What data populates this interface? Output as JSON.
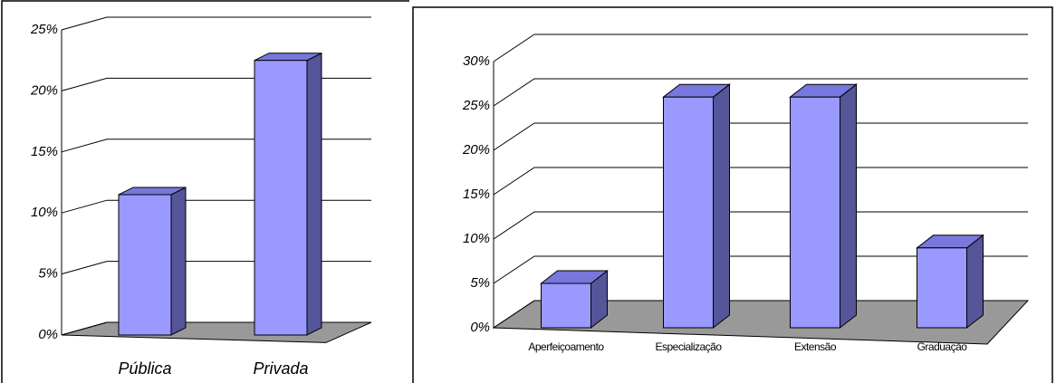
{
  "chart_data": [
    {
      "type": "bar",
      "categories": [
        "Pública",
        "Privada"
      ],
      "values": [
        11.5,
        22.5
      ],
      "color": "#9999ff",
      "ylim": [
        0,
        25
      ],
      "yticks": [
        {
          "value": 0,
          "label": "0%"
        },
        {
          "value": 5,
          "label": "5%"
        },
        {
          "value": 10,
          "label": "10%"
        },
        {
          "value": 15,
          "label": "15%"
        },
        {
          "value": 20,
          "label": "20%"
        },
        {
          "value": 25,
          "label": "25%"
        }
      ],
      "grid": true
    },
    {
      "type": "bar",
      "categories": [
        "Aperfeiçoamento",
        "Especialização",
        "Extensão",
        "Graduação"
      ],
      "values": [
        5,
        26,
        26,
        9
      ],
      "color": "#9999ff",
      "ylim": [
        0,
        30
      ],
      "yticks": [
        {
          "value": 0,
          "label": "0%"
        },
        {
          "value": 5,
          "label": "5%"
        },
        {
          "value": 10,
          "label": "10%"
        },
        {
          "value": 15,
          "label": "15%"
        },
        {
          "value": 20,
          "label": "20%"
        },
        {
          "value": 25,
          "label": "25%"
        },
        {
          "value": 30,
          "label": "30%"
        }
      ],
      "grid": true
    }
  ]
}
